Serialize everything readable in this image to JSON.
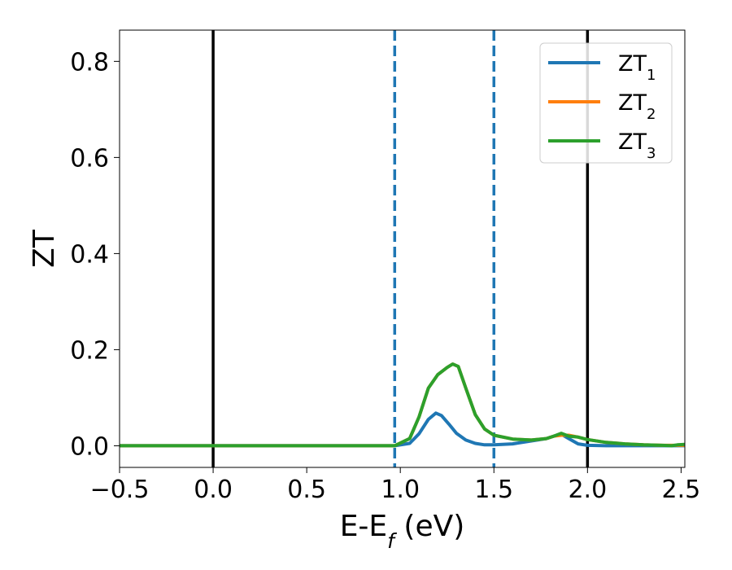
{
  "chart_data": {
    "type": "line",
    "xlabel": "E-E",
    "xlabel_sub": "f",
    "xlabel_unit": " (eV)",
    "ylabel": "ZT",
    "xlim": [
      -0.5,
      2.52
    ],
    "ylim": [
      -0.045,
      0.865
    ],
    "xticks": [
      -0.5,
      0.0,
      0.5,
      1.0,
      1.5,
      2.0,
      2.5
    ],
    "xtick_labels": [
      "−0.5",
      "0.0",
      "0.5",
      "1.0",
      "1.5",
      "2.0",
      "2.5"
    ],
    "yticks": [
      0.0,
      0.2,
      0.4,
      0.6,
      0.8
    ],
    "ytick_labels": [
      "0.0",
      "0.2",
      "0.4",
      "0.6",
      "0.8"
    ],
    "grid": false,
    "legend_position": "top-right",
    "vlines": [
      {
        "x": 0.0,
        "style": "solid",
        "color": "#000000"
      },
      {
        "x": 0.97,
        "style": "dashed",
        "color": "#1f77b4"
      },
      {
        "x": 1.5,
        "style": "dashed",
        "color": "#1f77b4"
      },
      {
        "x": 2.0,
        "style": "solid",
        "color": "#000000"
      }
    ],
    "series": [
      {
        "name": "ZT",
        "sub": "1",
        "color": "#1f77b4",
        "x": [
          -0.5,
          0.97,
          1.05,
          1.1,
          1.15,
          1.19,
          1.22,
          1.26,
          1.3,
          1.35,
          1.4,
          1.45,
          1.5,
          1.6,
          1.7,
          1.78,
          1.82,
          1.86,
          1.9,
          1.95,
          2.0,
          2.1,
          2.3,
          2.52
        ],
        "y": [
          0.0,
          0.0,
          0.005,
          0.025,
          0.055,
          0.068,
          0.063,
          0.045,
          0.026,
          0.012,
          0.005,
          0.002,
          0.002,
          0.004,
          0.01,
          0.015,
          0.02,
          0.024,
          0.015,
          0.004,
          0.001,
          0.0,
          0.0,
          0.0
        ]
      },
      {
        "name": "ZT",
        "sub": "2",
        "color": "#ff7f0e",
        "x": [
          -0.5,
          0.97,
          1.05,
          1.1,
          1.15,
          1.2,
          1.25,
          1.28,
          1.31,
          1.35,
          1.4,
          1.45,
          1.5,
          1.6,
          1.7,
          1.78,
          1.82,
          1.86,
          1.9,
          1.95,
          2.0,
          2.1,
          2.2,
          2.3,
          2.4,
          2.52
        ],
        "y": [
          0.0,
          0.0,
          0.015,
          0.06,
          0.12,
          0.148,
          0.163,
          0.17,
          0.165,
          0.12,
          0.065,
          0.035,
          0.022,
          0.014,
          0.012,
          0.015,
          0.02,
          0.022,
          0.022,
          0.018,
          0.013,
          0.007,
          0.004,
          0.002,
          0.001,
          0.001
        ]
      },
      {
        "name": "ZT",
        "sub": "3",
        "color": "#2ca02c",
        "x": [
          -0.5,
          0.97,
          1.05,
          1.1,
          1.15,
          1.2,
          1.25,
          1.28,
          1.31,
          1.35,
          1.4,
          1.45,
          1.5,
          1.6,
          1.7,
          1.78,
          1.82,
          1.86,
          1.9,
          1.95,
          2.0,
          2.1,
          2.2,
          2.3,
          2.4,
          2.45,
          2.48,
          2.52
        ],
        "y": [
          0.0,
          0.0,
          0.015,
          0.06,
          0.12,
          0.148,
          0.163,
          0.17,
          0.165,
          0.12,
          0.065,
          0.035,
          0.022,
          0.014,
          0.012,
          0.015,
          0.02,
          0.026,
          0.02,
          0.018,
          0.013,
          0.007,
          0.004,
          0.002,
          0.001,
          0.0,
          0.002,
          0.003
        ]
      }
    ]
  }
}
